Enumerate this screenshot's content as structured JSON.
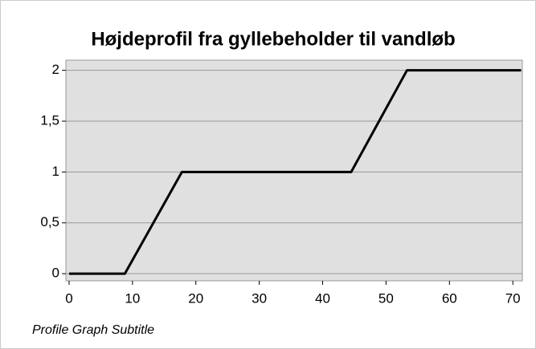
{
  "chart_data": {
    "type": "line",
    "title": "Højdeprofil fra gyllebeholder til vandløb",
    "subtitle": "Profile Graph Subtitle",
    "x": [
      0,
      8.8,
      17.8,
      44.5,
      53.3,
      71.3
    ],
    "series": [
      {
        "color": "#000000",
        "values": [
          0,
          0,
          1,
          1,
          2,
          2
        ]
      }
    ],
    "xlim": [
      -0.5,
      71.5
    ],
    "xticks": [
      0,
      10,
      20,
      30,
      40,
      50,
      60,
      70
    ],
    "ylim": [
      -0.07,
      2.1
    ],
    "yticks": [
      0,
      {
        "value": 0.5,
        "label": "0,5"
      },
      1,
      {
        "value": 1.5,
        "label": "1,5"
      },
      2
    ],
    "grid": true
  }
}
